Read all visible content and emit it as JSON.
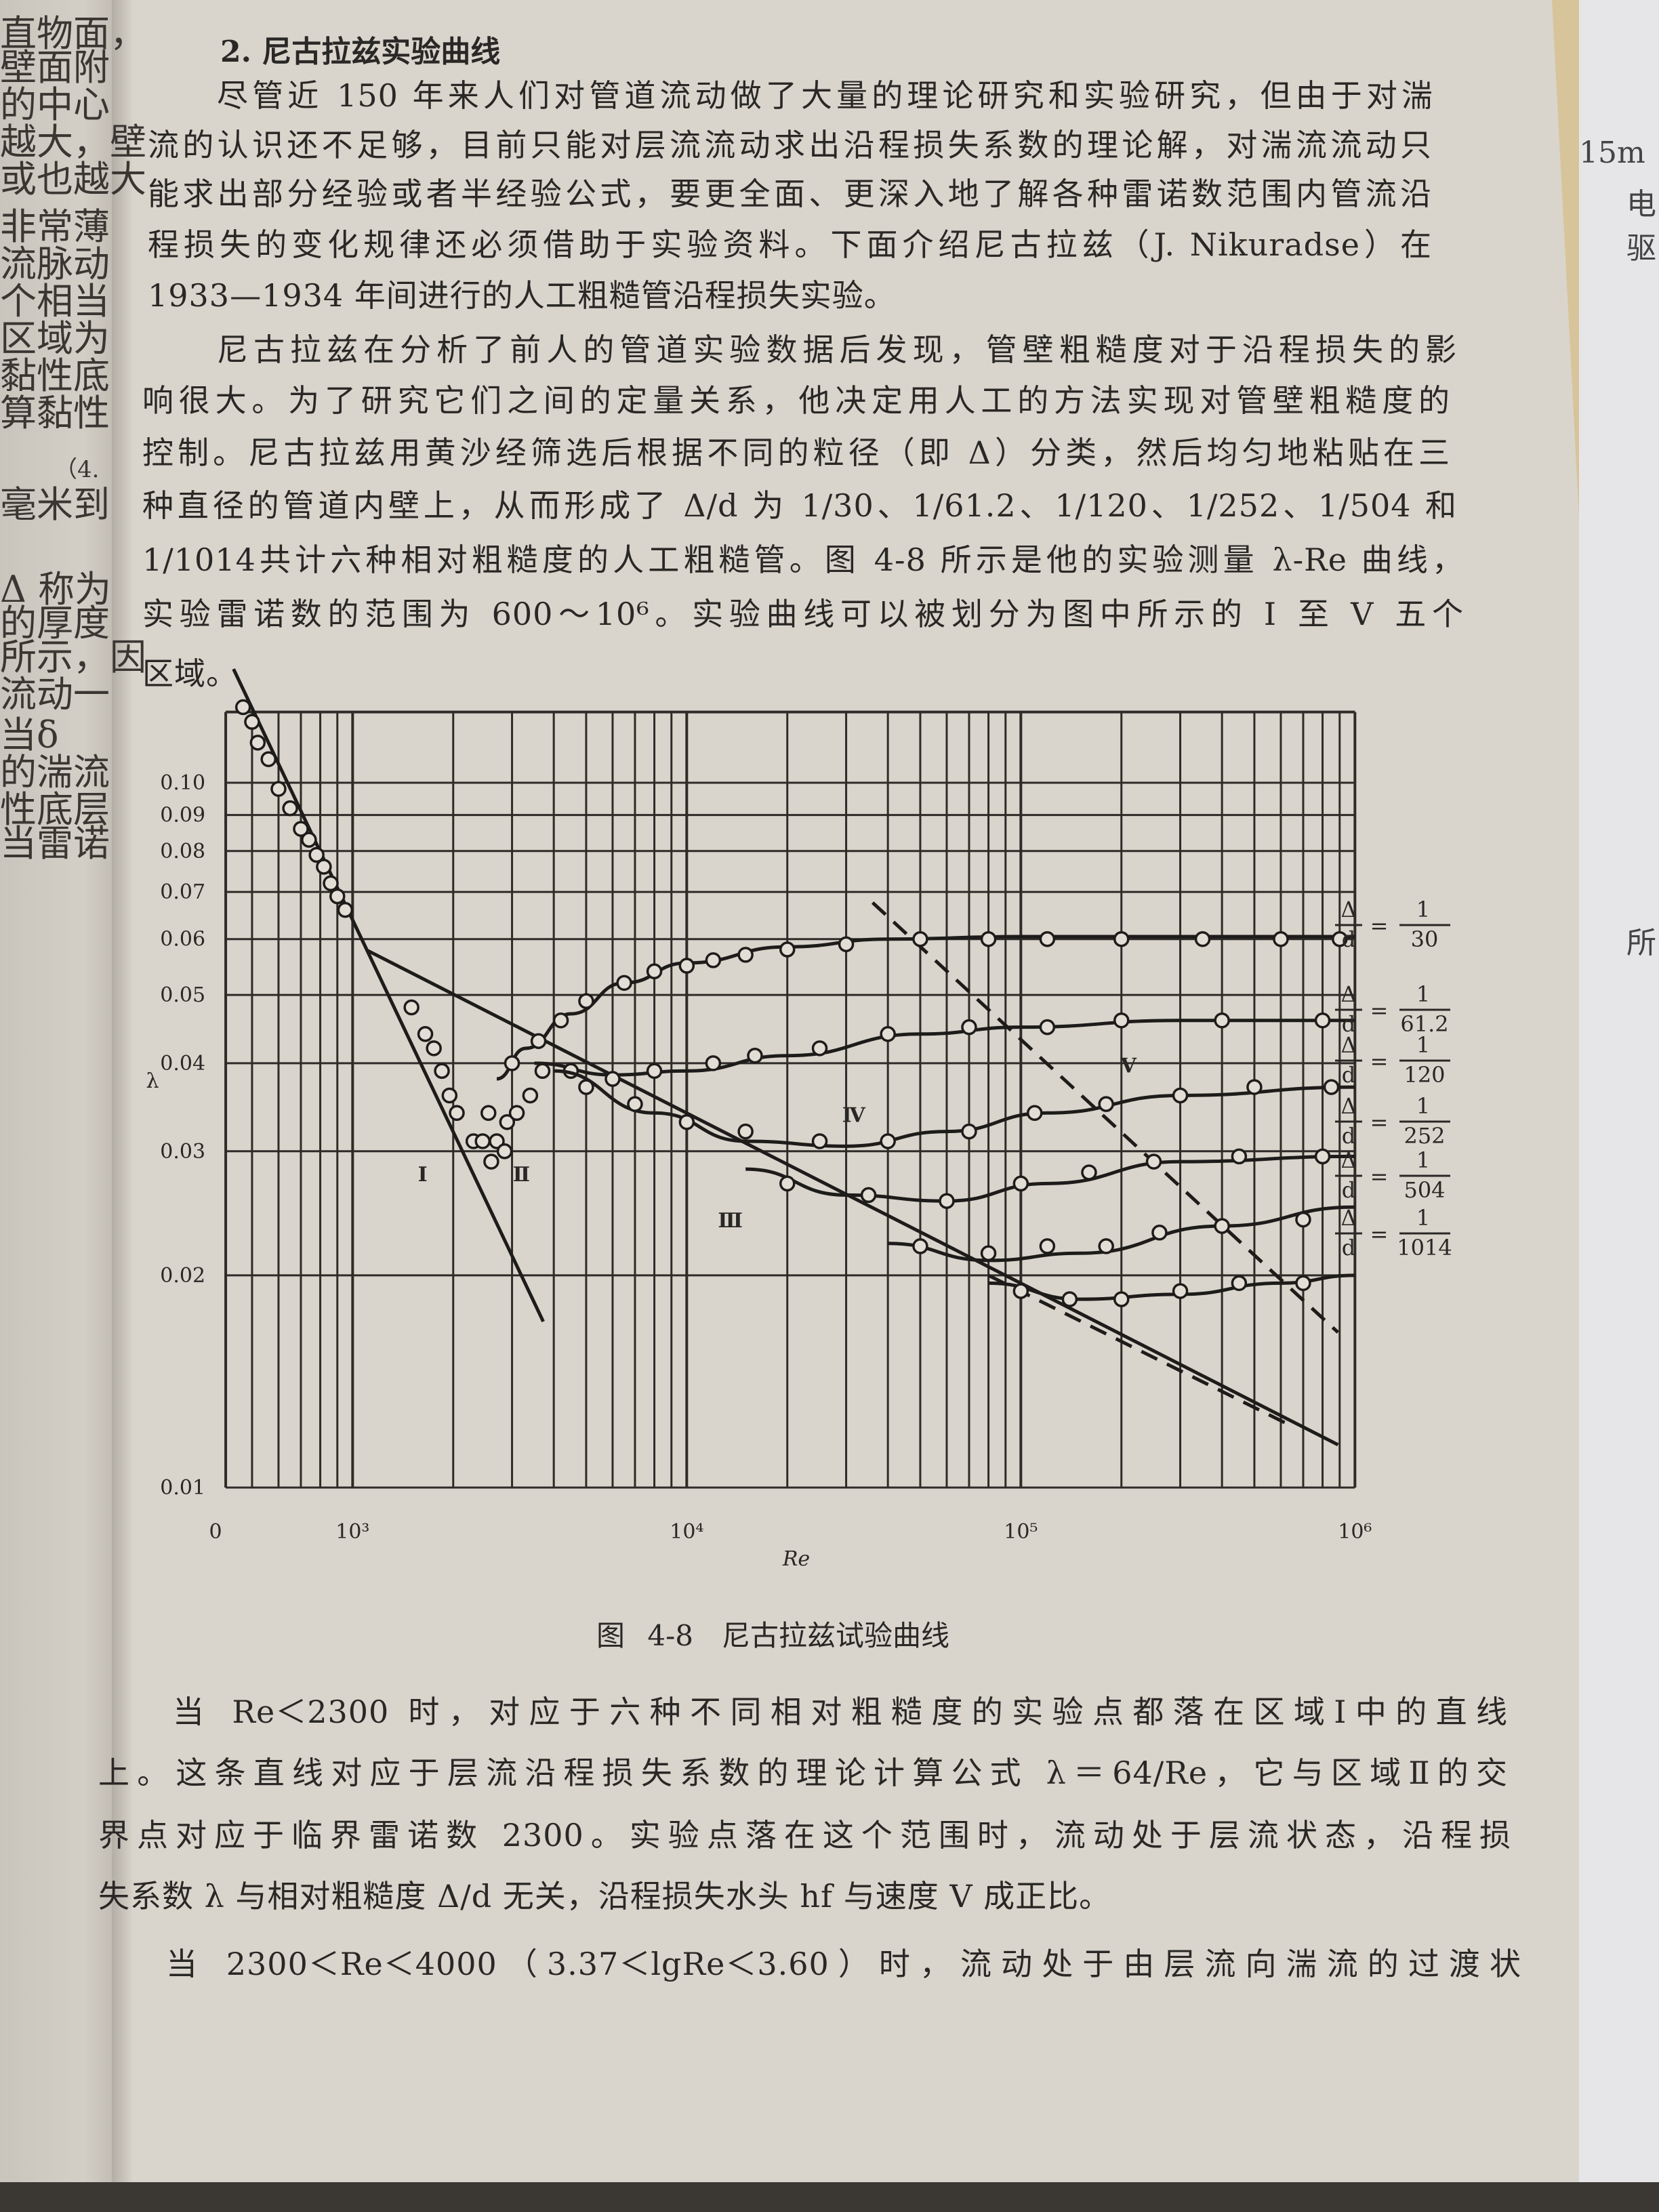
{
  "left_page_fragments": [
    "直物面，",
    "壁面附",
    "的中心",
    "越大，壁",
    "或也越大",
    "非常薄",
    "流脉动",
    "个相当",
    "区域为",
    "黏性底",
    "算黏性",
    "（4.",
    "毫米到",
    "Δ 称为",
    "的厚度",
    "所示，因",
    "流动一",
    "当δ",
    "的湍流",
    "性底层",
    "当雷诺"
  ],
  "right_page_fragments": [
    "15m",
    "电",
    "驱",
    "所"
  ],
  "section_title": "2. 尼古拉兹实验曲线",
  "paragraph1": [
    "尽管近 150 年来人们对管道流动做了大量的理论研究和实验研究，但由于对湍",
    "流的认识还不足够，目前只能对层流流动求出沿程损失系数的理论解，对湍流流动只",
    "能求出部分经验或者半经验公式，要更全面、更深入地了解各种雷诺数范围内管流沿",
    "程损失的变化规律还必须借助于实验资料。下面介绍尼古拉兹（J. Nikuradse）在",
    "1933—1934 年间进行的人工粗糙管沿程损失实验。"
  ],
  "paragraph2": [
    "尼古拉兹在分析了前人的管道实验数据后发现，管壁粗糙度对于沿程损失的影",
    "响很大。为了研究它们之间的定量关系，他决定用人工的方法实现对管壁粗糙度的",
    "控制。尼古拉兹用黄沙经筛选后根据不同的粒径（即 Δ）分类，然后均匀地粘贴在三",
    "种直径的管道内壁上，从而形成了 Δ/d 为 1/30、1/61.2、1/120、1/252、1/504 和",
    "1/1014共计六种相对粗糙度的人工粗糙管。图 4-8 所示是他的实验测量 λ-Re 曲线，",
    "实验雷诺数的范围为 600～10⁶。实验曲线可以被划分为图中所示的 Ⅰ 至 Ⅴ 五个",
    "区域。"
  ],
  "figure_caption": "图 4-8　尼古拉兹试验曲线",
  "paragraph3": [
    "当 Re＜2300 时，对应于六种不同相对粗糙度的实验点都落在区域Ⅰ中的直线",
    "上。这条直线对应于层流沿程损失系数的理论计算公式 λ＝64/Re，它与区域Ⅱ的交",
    "界点对应于临界雷诺数 2300。实验点落在这个范围时，流动处于层流状态，沿程损",
    "失系数 λ 与相对粗糙度 Δ/d 无关，沿程损失水头 hf 与速度 V 成正比。",
    "当 2300＜Re＜4000（3.37＜lgRe＜3.60）时，流动处于由层流向湍流的过渡状"
  ],
  "chart_data": {
    "type": "line",
    "title": "",
    "xlabel": "Re",
    "ylabel": "λ",
    "xscale": "log",
    "yscale": "log",
    "xlim": [
      417,
      1000000
    ],
    "ylim": [
      0.01,
      0.126
    ],
    "grid": true,
    "x_tick_labels": [
      {
        "value": 417,
        "label": "0"
      },
      {
        "value": 1000,
        "label": "10³"
      },
      {
        "value": 10000,
        "label": "10⁴"
      },
      {
        "value": 100000,
        "label": "10⁵"
      },
      {
        "value": 1000000,
        "label": "10⁶"
      }
    ],
    "y_ticks": [
      0.01,
      0.02,
      0.03,
      0.04,
      0.05,
      0.06,
      0.07,
      0.08,
      0.09,
      0.1
    ],
    "y_tick_labels": [
      "0.01",
      "0.02",
      "0.03",
      "0.04",
      "0.05",
      "0.06",
      "0.07",
      "0.08",
      "0.09",
      "0.10"
    ],
    "reference_lines": [
      {
        "style": "solid",
        "points": [
          [
            440,
            0.145
          ],
          [
            3720,
            0.0172
          ]
        ]
      },
      {
        "style": "solid",
        "points": [
          [
            1100,
            0.0579
          ],
          [
            890000,
            0.0115
          ]
        ]
      },
      {
        "style": "dashed",
        "points": [
          [
            80000,
            0.02
          ],
          [
            630000,
            0.0123
          ]
        ]
      },
      {
        "style": "dashed",
        "points": [
          [
            36000,
            0.0676
          ],
          [
            890000,
            0.0166
          ]
        ]
      }
    ],
    "series": [
      {
        "name": "Δ/d = 1/30",
        "num": "1",
        "den": "30",
        "curve": [
          [
            2700,
            0.038
          ],
          [
            3300,
            0.042
          ],
          [
            4500,
            0.047
          ],
          [
            6500,
            0.052
          ],
          [
            10000,
            0.0555
          ],
          [
            20000,
            0.0585
          ],
          [
            40000,
            0.06
          ],
          [
            100000,
            0.0605
          ],
          [
            1000000,
            0.0605
          ]
        ],
        "points": [
          [
            3000,
            0.04
          ],
          [
            3600,
            0.043
          ],
          [
            4200,
            0.046
          ],
          [
            5000,
            0.049
          ],
          [
            6500,
            0.052
          ],
          [
            8000,
            0.054
          ],
          [
            10000,
            0.055
          ],
          [
            12000,
            0.056
          ],
          [
            15000,
            0.057
          ],
          [
            20000,
            0.058
          ],
          [
            30000,
            0.059
          ],
          [
            50000,
            0.06
          ],
          [
            80000,
            0.06
          ],
          [
            120000,
            0.06
          ],
          [
            200000,
            0.06
          ],
          [
            350000,
            0.06
          ],
          [
            600000,
            0.06
          ],
          [
            900000,
            0.06
          ]
        ]
      },
      {
        "name": "Δ/d = 1/61.2",
        "num": "1",
        "den": "61.2",
        "curve": [
          [
            3500,
            0.04
          ],
          [
            6000,
            0.0385
          ],
          [
            10000,
            0.039
          ],
          [
            20000,
            0.041
          ],
          [
            50000,
            0.044
          ],
          [
            100000,
            0.045
          ],
          [
            300000,
            0.046
          ],
          [
            1000000,
            0.046
          ]
        ],
        "points": [
          [
            4500,
            0.039
          ],
          [
            6000,
            0.038
          ],
          [
            8000,
            0.039
          ],
          [
            12000,
            0.04
          ],
          [
            16000,
            0.041
          ],
          [
            25000,
            0.042
          ],
          [
            40000,
            0.044
          ],
          [
            70000,
            0.045
          ],
          [
            120000,
            0.045
          ],
          [
            200000,
            0.046
          ],
          [
            400000,
            0.046
          ],
          [
            800000,
            0.046
          ]
        ]
      },
      {
        "name": "Δ/d = 1/120",
        "num": "1",
        "den": "120",
        "curve": [
          [
            4000,
            0.039
          ],
          [
            8000,
            0.034
          ],
          [
            15000,
            0.031
          ],
          [
            30000,
            0.0305
          ],
          [
            60000,
            0.032
          ],
          [
            120000,
            0.034
          ],
          [
            300000,
            0.036
          ],
          [
            1000000,
            0.037
          ]
        ],
        "points": [
          [
            5000,
            0.037
          ],
          [
            7000,
            0.035
          ],
          [
            10000,
            0.033
          ],
          [
            15000,
            0.032
          ],
          [
            25000,
            0.031
          ],
          [
            40000,
            0.031
          ],
          [
            70000,
            0.032
          ],
          [
            110000,
            0.034
          ],
          [
            180000,
            0.035
          ],
          [
            300000,
            0.036
          ],
          [
            500000,
            0.037
          ],
          [
            850000,
            0.037
          ]
        ]
      },
      {
        "name": "Δ/d = 1/252",
        "num": "1",
        "den": "252",
        "curve": [
          [
            15000,
            0.0283
          ],
          [
            30000,
            0.026
          ],
          [
            60000,
            0.0255
          ],
          [
            120000,
            0.027
          ],
          [
            300000,
            0.029
          ],
          [
            1000000,
            0.0295
          ]
        ],
        "points": [
          [
            20000,
            0.027
          ],
          [
            35000,
            0.026
          ],
          [
            60000,
            0.0255
          ],
          [
            100000,
            0.027
          ],
          [
            160000,
            0.028
          ],
          [
            250000,
            0.029
          ],
          [
            450000,
            0.0295
          ],
          [
            800000,
            0.0295
          ]
        ]
      },
      {
        "name": "Δ/d = 1/504",
        "num": "1",
        "den": "504",
        "curve": [
          [
            40000,
            0.0222
          ],
          [
            80000,
            0.021
          ],
          [
            150000,
            0.0215
          ],
          [
            400000,
            0.0235
          ],
          [
            1000000,
            0.025
          ]
        ],
        "points": [
          [
            50000,
            0.022
          ],
          [
            80000,
            0.0215
          ],
          [
            120000,
            0.022
          ],
          [
            180000,
            0.022
          ],
          [
            260000,
            0.023
          ],
          [
            400000,
            0.0235
          ],
          [
            700000,
            0.024
          ]
        ]
      },
      {
        "name": "Δ/d = 1/1014",
        "num": "1",
        "den": "1014",
        "curve": [
          [
            80000,
            0.0195
          ],
          [
            150000,
            0.0185
          ],
          [
            300000,
            0.0188
          ],
          [
            600000,
            0.0195
          ],
          [
            1000000,
            0.02
          ]
        ],
        "points": [
          [
            100000,
            0.019
          ],
          [
            140000,
            0.0185
          ],
          [
            200000,
            0.0185
          ],
          [
            300000,
            0.019
          ],
          [
            450000,
            0.0195
          ],
          [
            700000,
            0.0195
          ]
        ]
      },
      {
        "name": "",
        "curve": [],
        "points": [
          [
            470,
            0.128
          ],
          [
            500,
            0.122
          ],
          [
            520,
            0.114
          ],
          [
            560,
            0.108
          ],
          [
            600,
            0.098
          ],
          [
            650,
            0.092
          ],
          [
            700,
            0.086
          ],
          [
            740,
            0.083
          ],
          [
            780,
            0.079
          ],
          [
            820,
            0.076
          ],
          [
            860,
            0.072
          ],
          [
            900,
            0.069
          ],
          [
            950,
            0.066
          ],
          [
            1500,
            0.048
          ],
          [
            1650,
            0.044
          ],
          [
            1750,
            0.042
          ],
          [
            1850,
            0.039
          ],
          [
            1950,
            0.036
          ],
          [
            2050,
            0.034
          ],
          [
            2300,
            0.031
          ],
          [
            2450,
            0.031
          ],
          [
            2550,
            0.034
          ],
          [
            2600,
            0.029
          ],
          [
            2700,
            0.031
          ],
          [
            2850,
            0.03
          ],
          [
            2900,
            0.033
          ],
          [
            3100,
            0.034
          ],
          [
            3400,
            0.036
          ],
          [
            3700,
            0.039
          ]
        ]
      }
    ],
    "region_labels": [
      {
        "label": "Ⅰ",
        "x": 1620,
        "y": 0.0272
      },
      {
        "label": "Ⅱ",
        "x": 3200,
        "y": 0.0272
      },
      {
        "label": "Ⅲ",
        "x": 13500,
        "y": 0.0234
      },
      {
        "label": "Ⅳ",
        "x": 31600,
        "y": 0.033
      },
      {
        "label": "Ⅴ",
        "x": 210000,
        "y": 0.0388
      }
    ],
    "legend_equals": "=",
    "legend_delta": "Δ",
    "legend_d": "d"
  }
}
